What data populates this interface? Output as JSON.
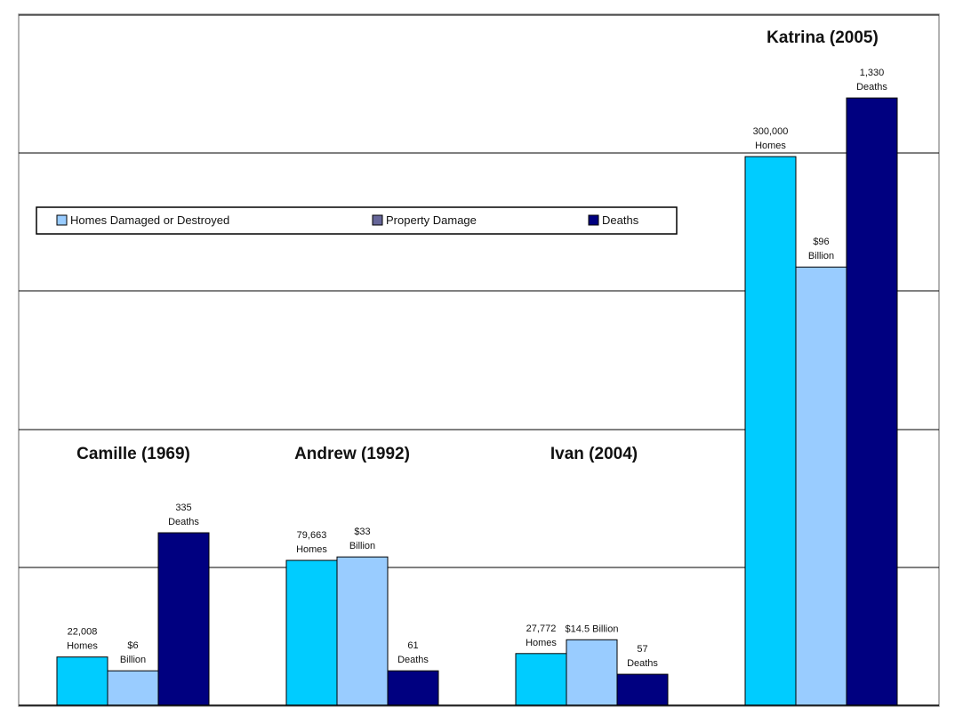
{
  "chart_data": {
    "type": "bar",
    "title": "",
    "xlabel": "",
    "ylabel": "",
    "grid": true,
    "legend_position": "left",
    "series": [
      {
        "name": "Homes Damaged or Destroyed",
        "color": "#00ccff"
      },
      {
        "name": "Property Damage",
        "color": "#99ccff"
      },
      {
        "name": "Deaths",
        "color": "#000080"
      }
    ],
    "legend_swatch_colors": [
      "#99ccff",
      "#666699",
      "#000080"
    ],
    "groups": [
      {
        "title": "Camille (1969)",
        "bars": [
          {
            "series": 0,
            "level": 0.07,
            "label": [
              "22,008",
              "Homes"
            ]
          },
          {
            "series": 1,
            "level": 0.05,
            "label": [
              "$6",
              "Billion"
            ]
          },
          {
            "series": 2,
            "level": 0.25,
            "label": [
              "335",
              "Deaths"
            ]
          }
        ]
      },
      {
        "title": "Andrew (1992)",
        "bars": [
          {
            "series": 0,
            "level": 0.21,
            "label": [
              "79,663",
              "Homes"
            ]
          },
          {
            "series": 1,
            "level": 0.215,
            "label": [
              "$33",
              "Billion"
            ]
          },
          {
            "series": 2,
            "level": 0.05,
            "label": [
              "61",
              "Deaths"
            ]
          }
        ]
      },
      {
        "title": "Ivan (2004)",
        "bars": [
          {
            "series": 0,
            "level": 0.075,
            "label": [
              "27,772",
              "Homes"
            ]
          },
          {
            "series": 1,
            "level": 0.095,
            "label": [
              "$14.5 Billion"
            ]
          },
          {
            "series": 2,
            "level": 0.045,
            "label": [
              "57",
              "Deaths"
            ]
          }
        ]
      },
      {
        "title": "Katrina (2005)",
        "bars": [
          {
            "series": 0,
            "level": 0.795,
            "label": [
              "300,000",
              "Homes"
            ]
          },
          {
            "series": 1,
            "level": 0.635,
            "label": [
              "$96",
              "Billion"
            ]
          },
          {
            "series": 2,
            "level": 0.88,
            "label": [
              "1,330",
              "Deaths"
            ]
          }
        ]
      }
    ]
  }
}
